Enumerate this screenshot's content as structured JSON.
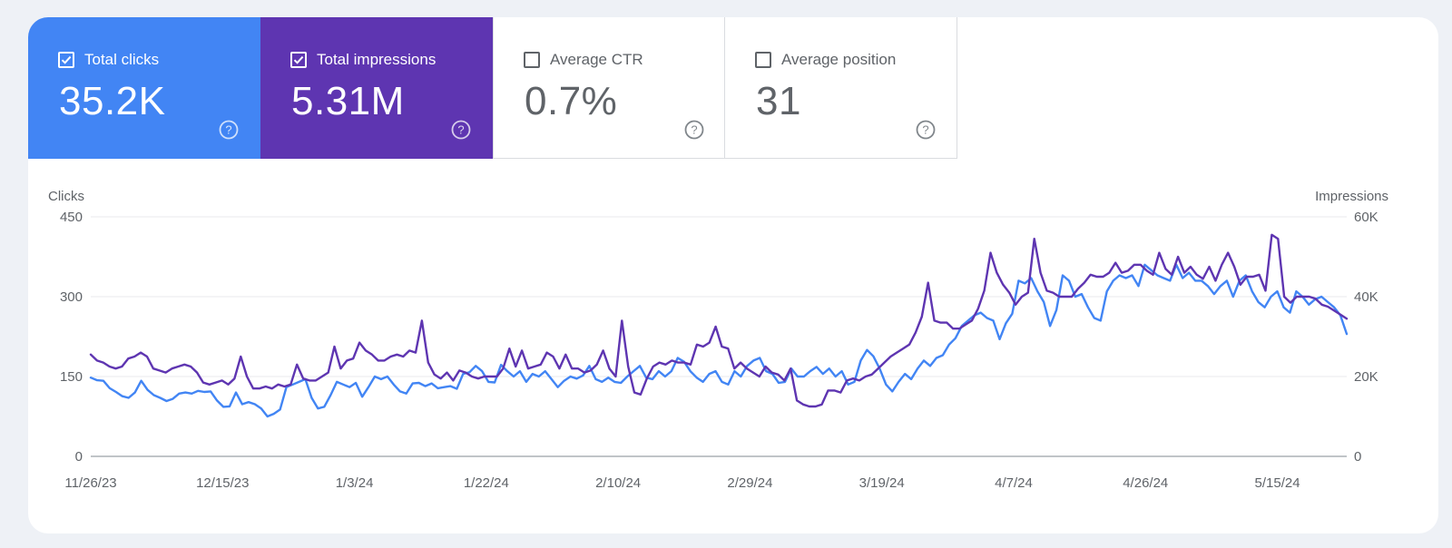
{
  "metrics": {
    "clicks": {
      "label": "Total clicks",
      "value": "35.2K",
      "color": "#4285f4",
      "checked": true
    },
    "impressions": {
      "label": "Total impressions",
      "value": "5.31M",
      "color": "#5e35b1",
      "checked": true
    },
    "ctr": {
      "label": "Average CTR",
      "value": "0.7%",
      "checked": false
    },
    "position": {
      "label": "Average position",
      "value": "31",
      "checked": false
    }
  },
  "icons": {
    "checkbox": "checkbox-icon",
    "help": "help-circle-icon"
  },
  "chart_data": {
    "type": "line",
    "ylabel_left": "Clicks",
    "ylabel_right": "Impressions",
    "ylim_left": [
      0,
      450
    ],
    "ylim_right": [
      0,
      60000
    ],
    "y_ticks_left": [
      "0",
      "150",
      "300",
      "450"
    ],
    "y_ticks_right": [
      "0",
      "20K",
      "40K",
      "60K"
    ],
    "x_ticks": [
      "11/26/23",
      "12/15/23",
      "1/3/24",
      "1/22/24",
      "2/10/24",
      "2/29/24",
      "3/19/24",
      "4/7/24",
      "4/26/24",
      "5/15/24"
    ],
    "x_range": [
      "11/26/23",
      "5/25/24"
    ],
    "grid": true,
    "series": [
      {
        "name": "Clicks",
        "axis": "left",
        "color": "#4285f4",
        "values": [
          148,
          143,
          142,
          128,
          121,
          113,
          110,
          120,
          142,
          125,
          115,
          110,
          104,
          108,
          118,
          120,
          118,
          123,
          121,
          122,
          105,
          93,
          94,
          120,
          98,
          102,
          98,
          90,
          75,
          80,
          88,
          130,
          135,
          140,
          145,
          110,
          90,
          93,
          115,
          140,
          135,
          130,
          138,
          112,
          130,
          150,
          145,
          150,
          135,
          122,
          118,
          137,
          138,
          132,
          137,
          128,
          130,
          132,
          127,
          155,
          158,
          170,
          160,
          140,
          139,
          172,
          160,
          150,
          160,
          140,
          155,
          150,
          160,
          145,
          130,
          142,
          150,
          146,
          152,
          170,
          145,
          140,
          148,
          140,
          138,
          150,
          160,
          170,
          148,
          145,
          160,
          150,
          160,
          185,
          178,
          160,
          148,
          140,
          155,
          160,
          140,
          135,
          160,
          150,
          170,
          180,
          185,
          160,
          155,
          138,
          140,
          165,
          150,
          150,
          160,
          168,
          155,
          165,
          150,
          160,
          135,
          140,
          180,
          200,
          188,
          165,
          135,
          122,
          140,
          155,
          145,
          165,
          180,
          170,
          185,
          190,
          210,
          222,
          245,
          255,
          265,
          270,
          260,
          255,
          220,
          250,
          268,
          330,
          325,
          335,
          310,
          290,
          245,
          275,
          340,
          330,
          300,
          305,
          280,
          260,
          255,
          310,
          330,
          340,
          335,
          340,
          320,
          360,
          350,
          340,
          335,
          330,
          360,
          335,
          345,
          330,
          330,
          320,
          305,
          320,
          330,
          300,
          330,
          340,
          310,
          290,
          280,
          300,
          310,
          280,
          270,
          310,
          300,
          285,
          295,
          300,
          290,
          280,
          265,
          230
        ],
        "note": "approximate readings"
      },
      {
        "name": "Impressions",
        "axis": "right",
        "color": "#5e35b1",
        "values": [
          25500,
          24000,
          23500,
          22500,
          22000,
          22500,
          24500,
          25000,
          26000,
          25000,
          22000,
          21500,
          21000,
          22000,
          22500,
          23000,
          22500,
          21000,
          18500,
          18000,
          18500,
          19000,
          18000,
          19500,
          25000,
          20000,
          17000,
          17000,
          17500,
          17000,
          18000,
          17500,
          18000,
          23000,
          19500,
          19000,
          19000,
          20000,
          21000,
          27500,
          22000,
          24000,
          24500,
          28500,
          26500,
          25500,
          24000,
          24000,
          25000,
          25500,
          25000,
          26500,
          26000,
          34000,
          23500,
          20500,
          19500,
          21000,
          19000,
          21500,
          21000,
          20000,
          19500,
          20000,
          20000,
          20000,
          22000,
          27000,
          22500,
          26500,
          22000,
          22500,
          23000,
          26000,
          25000,
          22000,
          25500,
          22000,
          22000,
          21000,
          21500,
          23000,
          26500,
          22000,
          20000,
          34000,
          22500,
          16000,
          15500,
          19500,
          22500,
          23500,
          23000,
          24000,
          23500,
          23500,
          23000,
          28000,
          27500,
          28500,
          32500,
          27500,
          27000,
          22000,
          23500,
          22000,
          21000,
          20000,
          22500,
          21000,
          20500,
          19000,
          22000,
          14000,
          13000,
          12500,
          12500,
          13000,
          16500,
          16500,
          16000,
          19000,
          19500,
          19000,
          20000,
          20500,
          22000,
          23500,
          25000,
          26000,
          27000,
          28000,
          31000,
          35000,
          43500,
          34000,
          33500,
          33500,
          32000,
          32000,
          33000,
          34000,
          37000,
          41500,
          51000,
          46000,
          43000,
          41000,
          38000,
          40000,
          41000,
          54500,
          46000,
          41500,
          41000,
          40000,
          40000,
          40000,
          42000,
          43500,
          45500,
          45000,
          45000,
          46000,
          48500,
          46000,
          46500,
          48000,
          48000,
          46500,
          45500,
          51000,
          47000,
          45500,
          50000,
          46000,
          47500,
          45500,
          44500,
          47500,
          44000,
          48000,
          51000,
          47500,
          43000,
          45000,
          45000,
          45500,
          41500,
          55500,
          54500,
          40000,
          38500,
          40000,
          40000,
          40000,
          39500,
          38000,
          37500,
          36500,
          35500,
          34500
        ]
      }
    ]
  }
}
